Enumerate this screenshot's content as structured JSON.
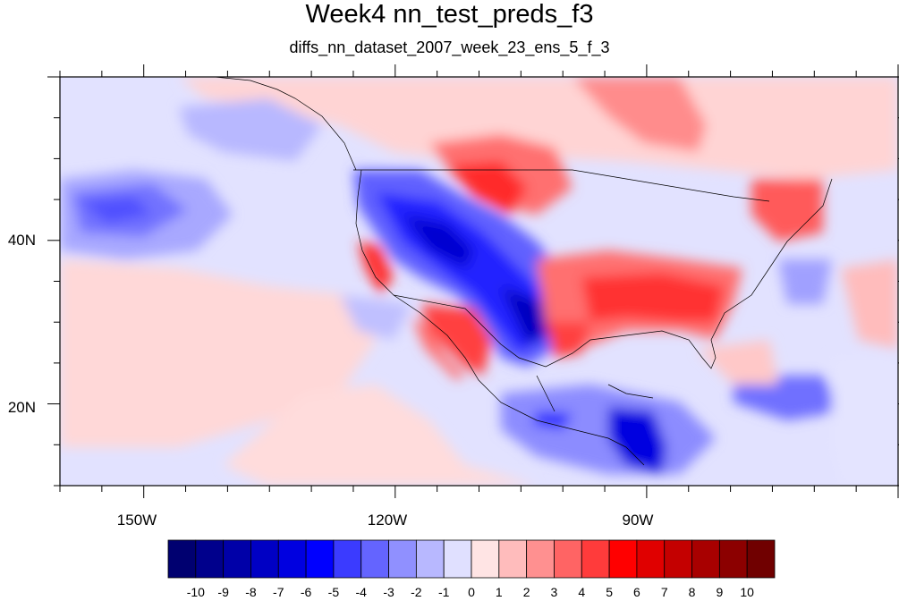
{
  "title": "Week4 nn_test_preds_f3",
  "subtitle": "diffs_nn_dataset_2007_week_23_ens_5_f_3",
  "lon_axis": {
    "range": [
      -160,
      -60
    ],
    "ticks": [
      {
        "value": -150,
        "label": "150W"
      },
      {
        "value": -120,
        "label": "120W"
      },
      {
        "value": -90,
        "label": "90W"
      }
    ]
  },
  "lat_axis": {
    "range": [
      10,
      60
    ],
    "ticks": [
      {
        "value": 40,
        "label": "40N"
      },
      {
        "value": 20,
        "label": "20N"
      }
    ]
  },
  "colorbar": {
    "labels": [
      "-10",
      "-9",
      "-8",
      "-7",
      "-6",
      "-5",
      "-4",
      "-3",
      "-2",
      "-1",
      "0",
      "1",
      "2",
      "3",
      "4",
      "5",
      "6",
      "7",
      "8",
      "9",
      "10"
    ],
    "colors": [
      "#000070",
      "#00008c",
      "#0000a8",
      "#0000c4",
      "#0000e0",
      "#0000ff",
      "#3b3bff",
      "#6464ff",
      "#9090ff",
      "#b8b8ff",
      "#e0e0ff",
      "#ffe4e4",
      "#ffbcbc",
      "#ff9090",
      "#ff6464",
      "#ff3b3b",
      "#ff0000",
      "#e00000",
      "#c40000",
      "#a80000",
      "#8c0000",
      "#700000"
    ]
  }
}
